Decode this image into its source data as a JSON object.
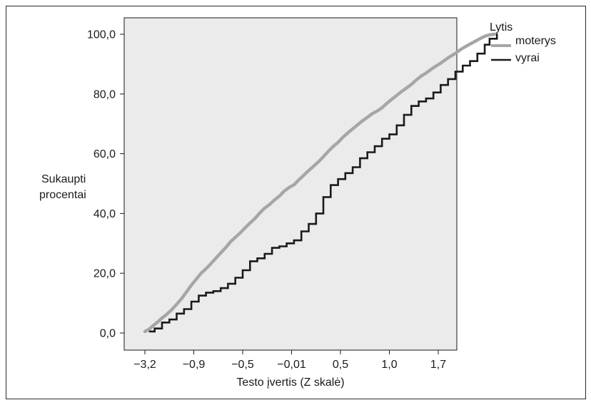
{
  "chart_data": {
    "type": "line",
    "title": "",
    "xlabel": "Testo įvertis (Z skalė)",
    "ylabel": [
      "Sukaupti",
      "procentai"
    ],
    "ylim": [
      0,
      100
    ],
    "x_ticks": [
      "−3,2",
      "−0,9",
      "−0,5",
      "−0,01",
      "0,5",
      "1,0",
      "1,7"
    ],
    "y_ticks": [
      "0,0",
      "20,0",
      "40,0",
      "60,0",
      "80,0",
      "100,0"
    ],
    "y_tick_values": [
      0,
      20,
      40,
      60,
      80,
      100
    ],
    "grid": false,
    "legend": {
      "title": "Lytis",
      "position": "top-right"
    },
    "series": [
      {
        "name": "moterys",
        "color": "#a6a6a6",
        "x": [
          0,
          0.08,
          0.15,
          0.25,
          0.35,
          0.45,
          0.55,
          0.65,
          0.75,
          0.85,
          0.95,
          1.05,
          1.15,
          1.25,
          1.35,
          1.45,
          1.55,
          1.65,
          1.75,
          1.85,
          1.95,
          2.05,
          2.15,
          2.25,
          2.35,
          2.45,
          2.55,
          2.65,
          2.75,
          2.85,
          2.95,
          3.05,
          3.15,
          3.25,
          3.35,
          3.45,
          3.55,
          3.65,
          3.75,
          3.85,
          3.95,
          4.05,
          4.15,
          4.25,
          4.35,
          4.45,
          4.55,
          4.65,
          4.75,
          4.85,
          4.95,
          5.05,
          5.15,
          5.25,
          5.35,
          5.45,
          5.55,
          5.65,
          5.75,
          5.85,
          5.95,
          6.05,
          6.15,
          6.25,
          6.35,
          6.45,
          6.55,
          6.65,
          6.75,
          6.85,
          6.95,
          7.05,
          7.15
        ],
        "y": [
          0.5,
          1.2,
          2.2,
          3.5,
          5.0,
          6.3,
          7.8,
          9.6,
          11.5,
          13.7,
          16.0,
          18.0,
          20.0,
          21.5,
          23.2,
          25.0,
          26.8,
          28.5,
          30.5,
          32.0,
          33.5,
          35.2,
          36.8,
          38.3,
          40.2,
          41.8,
          43.0,
          44.5,
          45.8,
          47.5,
          48.7,
          49.6,
          51.3,
          52.8,
          54.4,
          55.8,
          57.3,
          59.0,
          60.8,
          62.4,
          63.8,
          65.5,
          67.0,
          68.3,
          69.7,
          71.0,
          72.2,
          73.4,
          74.3,
          75.4,
          76.9,
          78.2,
          79.5,
          80.8,
          82.0,
          83.2,
          84.7,
          86.0,
          87.0,
          88.2,
          89.3,
          90.3,
          91.5,
          92.6,
          93.6,
          94.8,
          95.8,
          96.7,
          97.6,
          98.5,
          99.3,
          99.8,
          100.0
        ]
      },
      {
        "name": "vyrai",
        "color": "#1a1a1a",
        "x": [
          0.1,
          0.2,
          0.35,
          0.5,
          0.65,
          0.8,
          0.95,
          1.1,
          1.25,
          1.4,
          1.55,
          1.7,
          1.85,
          2.0,
          2.15,
          2.3,
          2.45,
          2.6,
          2.75,
          2.9,
          3.05,
          3.2,
          3.35,
          3.5,
          3.65,
          3.8,
          3.95,
          4.1,
          4.25,
          4.4,
          4.55,
          4.7,
          4.85,
          5.0,
          5.15,
          5.3,
          5.45,
          5.6,
          5.75,
          5.9,
          6.05,
          6.2,
          6.35,
          6.5,
          6.65,
          6.8,
          6.95,
          7.05,
          7.2
        ],
        "y": [
          0.5,
          1.5,
          3.5,
          4.5,
          6.5,
          8.0,
          10.5,
          12.5,
          13.5,
          14.0,
          15.0,
          16.5,
          18.5,
          21.0,
          24.0,
          25.0,
          26.5,
          28.5,
          29.0,
          30.0,
          31.0,
          34.0,
          36.5,
          40.0,
          45.5,
          49.5,
          51.5,
          53.5,
          55.5,
          58.5,
          60.5,
          62.5,
          65.0,
          66.5,
          69.5,
          73.0,
          76.0,
          77.5,
          78.5,
          80.5,
          83.0,
          85.0,
          87.5,
          89.5,
          91.0,
          93.5,
          96.5,
          98.5,
          100.0
        ]
      }
    ]
  }
}
